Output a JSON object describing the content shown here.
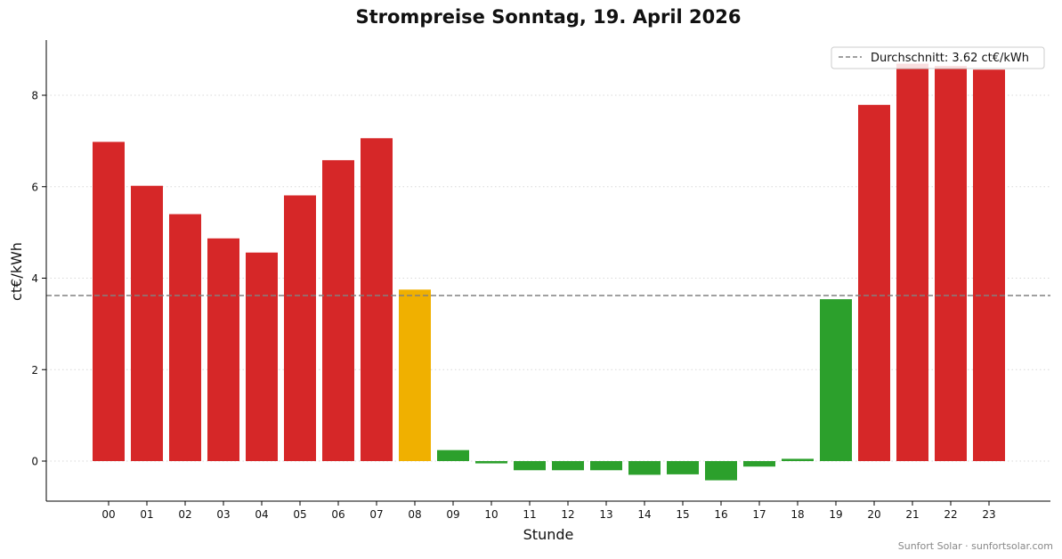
{
  "chart_data": {
    "type": "bar",
    "title": "Strompreise Sonntag, 19. April 2026",
    "xlabel": "Stunde",
    "ylabel": "ct€/kWh",
    "ylim": [
      -0.88,
      9.23
    ],
    "yticks": [
      0,
      2,
      4,
      6,
      8
    ],
    "grid": "horizontal dotted",
    "categories": [
      "00",
      "01",
      "02",
      "03",
      "04",
      "05",
      "06",
      "07",
      "08",
      "09",
      "10",
      "11",
      "12",
      "13",
      "14",
      "15",
      "16",
      "17",
      "18",
      "19",
      "20",
      "21",
      "22",
      "23"
    ],
    "values": [
      6.98,
      6.02,
      5.4,
      4.87,
      4.56,
      5.81,
      6.58,
      7.06,
      3.75,
      0.24,
      -0.05,
      -0.2,
      -0.2,
      -0.2,
      -0.3,
      -0.29,
      -0.42,
      -0.12,
      0.05,
      3.54,
      7.79,
      8.69,
      8.64,
      8.56
    ],
    "colors": [
      "red",
      "red",
      "red",
      "red",
      "red",
      "red",
      "red",
      "red",
      "yellow",
      "green",
      "green",
      "green",
      "green",
      "green",
      "green",
      "green",
      "green",
      "green",
      "green",
      "green",
      "red",
      "red",
      "red",
      "red"
    ],
    "palette": {
      "red": "#d62728",
      "yellow": "#f0b000",
      "green": "#2ca02c"
    },
    "average": {
      "value": 3.62,
      "label": "Durchschnitt: 3.62 ct€/kWh",
      "color": "#808080"
    },
    "legend_position": "top-right",
    "credit": "Sunfort Solar · sunfortsolar.com"
  }
}
